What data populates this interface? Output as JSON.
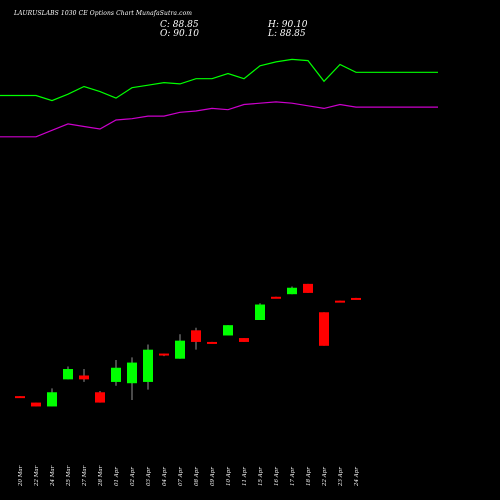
{
  "header": {
    "title": "LAURUSLABS 1030 CE Options Chart MunafaSutra.com",
    "close": "C: 88.85",
    "open": "O: 90.10",
    "high": "H: 90.10",
    "low": "L: 88.85"
  },
  "colors": {
    "background": "#000000",
    "up": "#00ff00",
    "down": "#ff0000",
    "ma_fast": "#00ff00",
    "ma_slow": "#cc00cc"
  },
  "chart_data": {
    "type": "candlestick",
    "title": "LAURUSLABS 1030 CE Options Chart MunafaSutra.com",
    "categories": [
      "20 Mar",
      "22 Mar",
      "24 Mar",
      "25 Mar",
      "27 Mar",
      "28 Mar",
      "01 Apr",
      "02 Apr",
      "03 Apr",
      "04 Apr",
      "07 Apr",
      "08 Apr",
      "09 Apr",
      "10 Apr",
      "11 Apr",
      "15 Apr",
      "16 Apr",
      "17 Apr",
      "18 Apr",
      "22 Apr",
      "23 Apr",
      "24 Apr"
    ],
    "candles": [
      {
        "date": "20 Mar",
        "open": 14.0,
        "high": 14.0,
        "low": 13.0,
        "close": 13.0
      },
      {
        "date": "22 Mar",
        "open": 9.0,
        "high": 9.0,
        "low": 6.0,
        "close": 6.0
      },
      {
        "date": "24 Mar",
        "open": 6.0,
        "high": 20.0,
        "low": 6.0,
        "close": 17.0
      },
      {
        "date": "25 Mar",
        "open": 27.0,
        "high": 37.0,
        "low": 27.0,
        "close": 35.0
      },
      {
        "date": "27 Mar",
        "open": 30.0,
        "high": 35.0,
        "low": 25.0,
        "close": 27.0
      },
      {
        "date": "28 Mar",
        "open": 17.0,
        "high": 18.0,
        "low": 9.0,
        "close": 9.0
      },
      {
        "date": "01 Apr",
        "open": 25.0,
        "high": 42.0,
        "low": 22.0,
        "close": 36.0
      },
      {
        "date": "02 Apr",
        "open": 24.0,
        "high": 44.0,
        "low": 11.0,
        "close": 40.0
      },
      {
        "date": "03 Apr",
        "open": 25.0,
        "high": 54.0,
        "low": 19.0,
        "close": 50.0
      },
      {
        "date": "04 Apr",
        "open": 47.0,
        "high": 47.0,
        "low": 45.0,
        "close": 46.0
      },
      {
        "date": "07 Apr",
        "open": 43.0,
        "high": 62.0,
        "low": 43.0,
        "close": 57.0
      },
      {
        "date": "08 Apr",
        "open": 65.0,
        "high": 67.0,
        "low": 50.0,
        "close": 56.0
      },
      {
        "date": "09 Apr",
        "open": 56.0,
        "high": 56.0,
        "low": 55.0,
        "close": 55.0
      },
      {
        "date": "10 Apr",
        "open": 61.0,
        "high": 69.0,
        "low": 61.0,
        "close": 69.0
      },
      {
        "date": "11 Apr",
        "open": 59.0,
        "high": 59.0,
        "low": 56.0,
        "close": 56.0
      },
      {
        "date": "15 Apr",
        "open": 73.0,
        "high": 86.0,
        "low": 73.0,
        "close": 85.0
      },
      {
        "date": "16 Apr",
        "open": 91.0,
        "high": 91.0,
        "low": 90.0,
        "close": 90.0
      },
      {
        "date": "17 Apr",
        "open": 93.0,
        "high": 99.0,
        "low": 93.0,
        "close": 98.0
      },
      {
        "date": "18 Apr",
        "open": 101.0,
        "high": 101.0,
        "low": 94.0,
        "close": 94.0
      },
      {
        "date": "22 Apr",
        "open": 79.0,
        "high": 79.0,
        "low": 53.0,
        "close": 53.0
      },
      {
        "date": "23 Apr",
        "open": 88.0,
        "high": 88.0,
        "low": 87.0,
        "close": 87.0
      },
      {
        "date": "24 Apr",
        "open": 90.1,
        "high": 90.1,
        "low": 88.85,
        "close": 88.85
      }
    ],
    "ma_fast": [
      247,
      247,
      243,
      248,
      254,
      250,
      245,
      253,
      255,
      257,
      256,
      260,
      260,
      264,
      260,
      270,
      273,
      275,
      274,
      258,
      271,
      265
    ],
    "ma_slow": [
      215,
      215,
      220,
      225,
      223,
      221,
      228,
      229,
      231,
      231,
      234,
      235,
      237,
      236,
      240,
      241,
      242,
      241,
      239,
      237,
      240,
      238
    ],
    "ylim": [
      -20,
      290
    ]
  }
}
